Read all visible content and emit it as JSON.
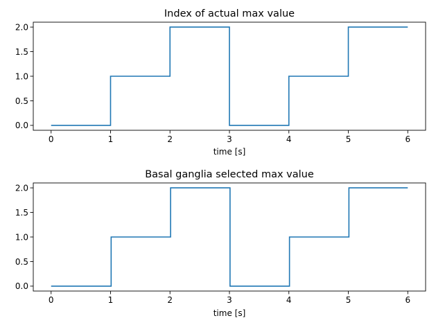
{
  "chart_data": [
    {
      "type": "line",
      "title": "Index of actual max value",
      "xlabel": "time [s]",
      "ylabel": "",
      "xlim": [
        -0.3,
        6.3
      ],
      "ylim": [
        -0.1,
        2.1
      ],
      "xticks": [
        0,
        1,
        2,
        3,
        4,
        5,
        6
      ],
      "xtick_labels": [
        "0",
        "1",
        "2",
        "3",
        "4",
        "5",
        "6"
      ],
      "yticks": [
        0.0,
        0.5,
        1.0,
        1.5,
        2.0
      ],
      "ytick_labels": [
        "0.0",
        "0.5",
        "1.0",
        "1.5",
        "2.0"
      ],
      "grid": false,
      "series": [
        {
          "color": "#1f77b4",
          "x": [
            0,
            1,
            1,
            2,
            2,
            3,
            3,
            4,
            4,
            5,
            5,
            6
          ],
          "y": [
            0,
            0,
            1,
            1,
            2,
            2,
            0,
            0,
            1,
            1,
            2,
            2
          ]
        }
      ]
    },
    {
      "type": "line",
      "title": "Basal ganglia selected max value",
      "xlabel": "time [s]",
      "ylabel": "",
      "xlim": [
        -0.3,
        6.3
      ],
      "ylim": [
        -0.1,
        2.1
      ],
      "xticks": [
        0,
        1,
        2,
        3,
        4,
        5,
        6
      ],
      "xtick_labels": [
        "0",
        "1",
        "2",
        "3",
        "4",
        "5",
        "6"
      ],
      "yticks": [
        0.0,
        0.5,
        1.0,
        1.5,
        2.0
      ],
      "ytick_labels": [
        "0.0",
        "0.5",
        "1.0",
        "1.5",
        "2.0"
      ],
      "grid": false,
      "series": [
        {
          "color": "#1f77b4",
          "x": [
            0,
            1.01,
            1.01,
            2.01,
            2.01,
            3.01,
            3.01,
            4.01,
            4.01,
            5.01,
            5.01,
            6
          ],
          "y": [
            0,
            0,
            1,
            1,
            2,
            2,
            0,
            0,
            1,
            1,
            2,
            2
          ]
        }
      ]
    }
  ]
}
